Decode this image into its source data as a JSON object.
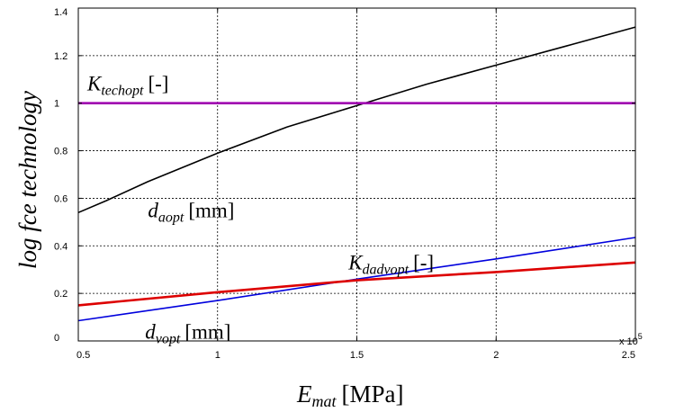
{
  "chart_data": {
    "type": "line",
    "title": "",
    "xlabel": {
      "symbol": "E",
      "subscript": "mat",
      "unit": "[MPa]"
    },
    "ylabel": "log fce technology",
    "xlim": [
      50000,
      250000
    ],
    "ylim": [
      0,
      1.4
    ],
    "x_ticks": [
      50000,
      100000,
      150000,
      200000,
      250000
    ],
    "x_tick_labels": [
      "0.5",
      "1",
      "1.5",
      "2",
      "2.5"
    ],
    "x_multiplier": {
      "base": "x 10",
      "exponent": "5"
    },
    "y_ticks": [
      0,
      0.2,
      0.4,
      0.6,
      0.8,
      1,
      1.2,
      1.4
    ],
    "y_tick_labels": [
      "0",
      "0.2",
      "0.4",
      "0.6",
      "0.8",
      "1",
      "1.2",
      "1.4"
    ],
    "grid": true,
    "series": [
      {
        "color": "#000000",
        "x": [
          50000,
          60000,
          75000,
          100000,
          125000,
          150000,
          175000,
          200000,
          225000,
          250000
        ],
        "y": [
          0.54,
          0.59,
          0.67,
          0.79,
          0.9,
          0.99,
          1.08,
          1.16,
          1.24,
          1.32
        ]
      },
      {
        "color": "#a000b0",
        "x": [
          50000,
          250000
        ],
        "y": [
          1.0,
          1.0
        ]
      },
      {
        "color": "#0000dd",
        "x": [
          50000,
          100000,
          150000,
          200000,
          250000
        ],
        "y": [
          0.085,
          0.17,
          0.26,
          0.345,
          0.435
        ]
      },
      {
        "color": "#dd0000",
        "x": [
          50000,
          100000,
          150000,
          200000,
          250000
        ],
        "y": [
          0.15,
          0.205,
          0.255,
          0.29,
          0.33
        ]
      }
    ],
    "annotations": [
      {
        "symbol": "K",
        "subscript": "techopt",
        "unit": "[-]",
        "x": 50000,
        "y": 1.0
      },
      {
        "symbol": "d",
        "subscript": "aopt",
        "unit": "[mm]",
        "x": 75000,
        "y": 0.52
      },
      {
        "symbol": "K",
        "subscript": "dadvopt",
        "unit": "[-]",
        "x": 147000,
        "y": 0.3
      },
      {
        "symbol": "d",
        "subscript": "vopt",
        "unit": "[mm]",
        "x": 74000,
        "y": 0.01
      }
    ]
  }
}
